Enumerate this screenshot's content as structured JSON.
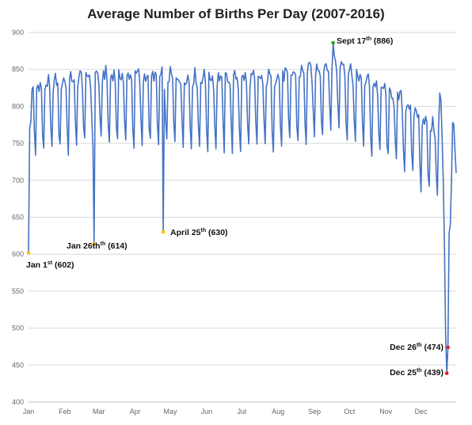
{
  "chart_data": {
    "type": "line",
    "title": "Average Number of Births Per Day (2007-2016)",
    "xlabel": "",
    "ylabel": "",
    "ylim": [
      400,
      900
    ],
    "yticks": [
      400,
      450,
      500,
      550,
      600,
      650,
      700,
      750,
      800,
      850,
      900
    ],
    "grid": true,
    "legend": "none",
    "colors": {
      "line": "#4472c4",
      "grid": "#d9d9d9",
      "axis": "#bfbfbf",
      "max_marker": "#2ca02c",
      "low_marker": "#ffc000",
      "christmas_marker": "#e02020"
    },
    "months": [
      "Jan",
      "Feb",
      "Mar",
      "Apr",
      "May",
      "Jun",
      "Jul",
      "Aug",
      "Sep",
      "Oct",
      "Nov",
      "Dec"
    ],
    "month_days": [
      31,
      29,
      31,
      30,
      31,
      30,
      31,
      31,
      30,
      31,
      30,
      31
    ],
    "weekly_pattern": [
      22,
      26,
      28,
      27,
      18,
      -40,
      -68
    ],
    "seasonal_baseline": [
      {
        "day": 1,
        "value": 800
      },
      {
        "day": 60,
        "value": 818
      },
      {
        "day": 120,
        "value": 815
      },
      {
        "day": 200,
        "value": 812
      },
      {
        "day": 240,
        "value": 822
      },
      {
        "day": 265,
        "value": 838
      },
      {
        "day": 280,
        "value": 818
      },
      {
        "day": 320,
        "value": 784
      },
      {
        "day": 345,
        "value": 748
      },
      {
        "day": 366,
        "value": 738
      }
    ],
    "fixed_points": [
      {
        "day": 1,
        "value": 602
      },
      {
        "day": 2,
        "value": 770
      },
      {
        "day": 3,
        "value": 780
      },
      {
        "day": 57,
        "value": 614
      },
      {
        "day": 116,
        "value": 630
      },
      {
        "day": 261,
        "value": 886
      },
      {
        "day": 352,
        "value": 818
      },
      {
        "day": 353,
        "value": 808
      },
      {
        "day": 354,
        "value": 760
      },
      {
        "day": 355,
        "value": 700
      },
      {
        "day": 356,
        "value": 612
      },
      {
        "day": 357,
        "value": 490
      },
      {
        "day": 358,
        "value": 439
      },
      {
        "day": 359,
        "value": 474
      },
      {
        "day": 360,
        "value": 628
      },
      {
        "day": 361,
        "value": 640
      },
      {
        "day": 362,
        "value": 700
      },
      {
        "day": 363,
        "value": 778
      },
      {
        "day": 364,
        "value": 776
      },
      {
        "day": 365,
        "value": 740
      },
      {
        "day": 366,
        "value": 710
      }
    ],
    "annotations": [
      {
        "id": "jan1",
        "day": 1,
        "value": 602,
        "text": "Jan 1",
        "sup": "st",
        "suffix": " (602)",
        "marker": "low_marker"
      },
      {
        "id": "jan26",
        "day": 57,
        "value": 614,
        "text": "Jan 26th",
        "sup": "th",
        "suffix": " (614)",
        "marker": "low_marker"
      },
      {
        "id": "apr25",
        "day": 116,
        "value": 630,
        "text": "April 25",
        "sup": "th",
        "suffix": " (630)",
        "marker": "low_marker"
      },
      {
        "id": "sep17",
        "day": 261,
        "value": 886,
        "text": "Sept 17",
        "sup": "th",
        "suffix": " (886)",
        "marker": "max_marker"
      },
      {
        "id": "dec26",
        "day": 359,
        "value": 474,
        "text": "Dec 26",
        "sup": "th",
        "suffix": " (474)",
        "marker": "christmas_marker"
      },
      {
        "id": "dec25",
        "day": 358,
        "value": 439,
        "text": "Dec 25",
        "sup": "th",
        "suffix": " (439)",
        "marker": "christmas_marker"
      }
    ]
  }
}
